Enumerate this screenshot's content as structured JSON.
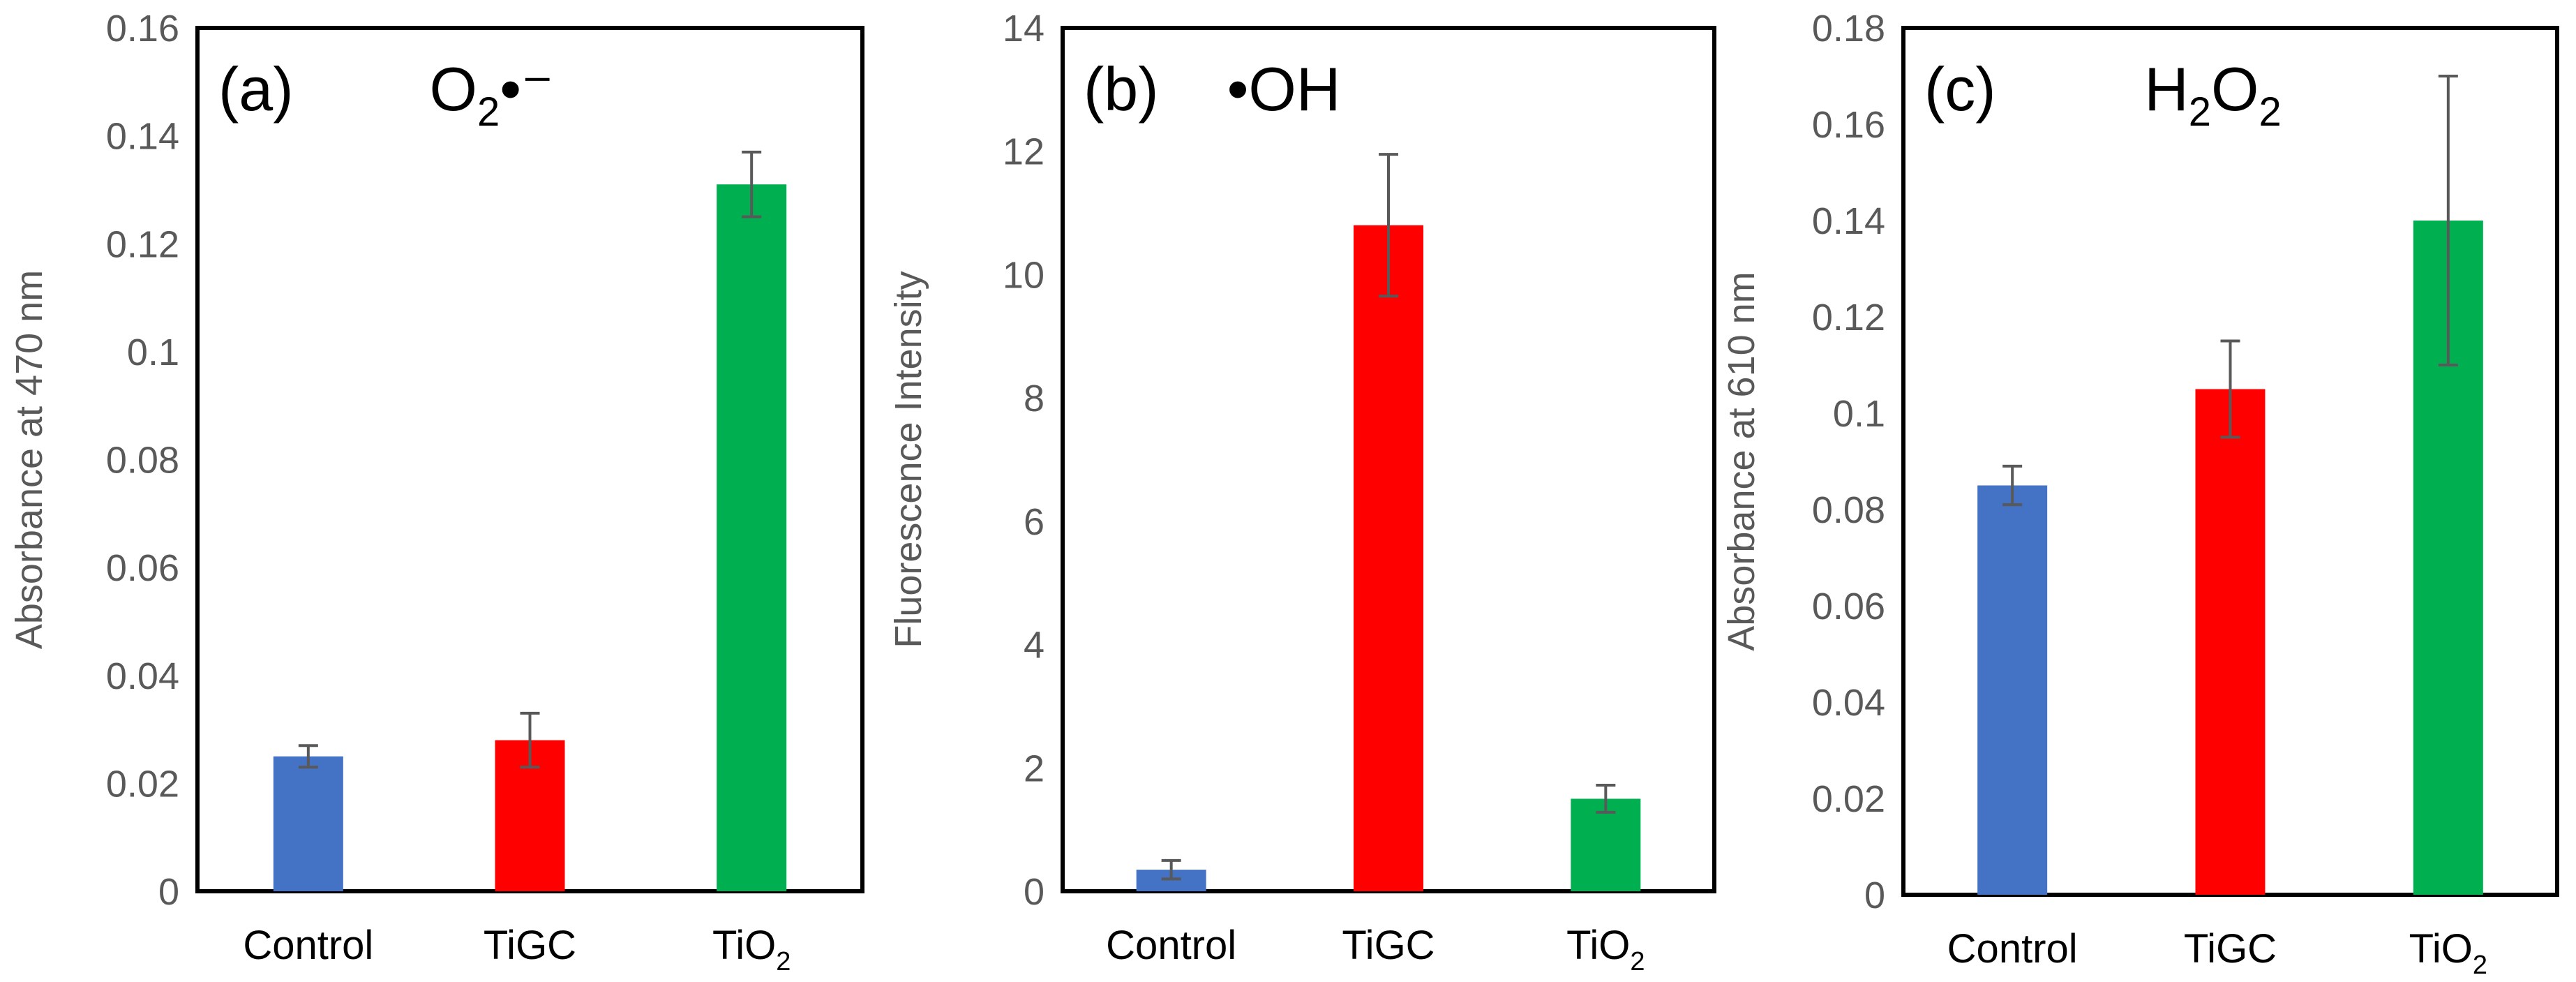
{
  "chart_data": [
    {
      "type": "bar",
      "panel_label": "(a)",
      "species": {
        "base": "O",
        "sub": "2",
        "suffix": "•⁻"
      },
      "ylabel": "Absorbance at 470 nm",
      "ylim": [
        0,
        0.16
      ],
      "yticks": [
        0,
        0.02,
        0.04,
        0.06,
        0.08,
        0.1,
        0.12,
        0.14,
        0.16
      ],
      "ytick_labels": [
        "0",
        "0.02",
        "0.04",
        "0.06",
        "0.08",
        "0.1",
        "0.12",
        "0.14",
        "0.16"
      ],
      "categories": [
        {
          "base": "Control",
          "sub": ""
        },
        {
          "base": "TiGC",
          "sub": ""
        },
        {
          "base": "TiO",
          "sub": "2"
        }
      ],
      "values": [
        0.025,
        0.028,
        0.131
      ],
      "errors": [
        0.002,
        0.005,
        0.006
      ],
      "colors": [
        "#4472C4",
        "#FF0000",
        "#00B050"
      ]
    },
    {
      "type": "bar",
      "panel_label": "(b)",
      "species": {
        "base": "•OH",
        "sub": "",
        "suffix": ""
      },
      "ylabel": "Fluorescence Intensity",
      "ylim": [
        0,
        14
      ],
      "yticks": [
        0,
        2,
        4,
        6,
        8,
        10,
        12,
        14
      ],
      "ytick_labels": [
        "0",
        "2",
        "4",
        "6",
        "8",
        "10",
        "12",
        "14"
      ],
      "categories": [
        {
          "base": "Control",
          "sub": ""
        },
        {
          "base": "TiGC",
          "sub": ""
        },
        {
          "base": "TiO",
          "sub": "2"
        }
      ],
      "values": [
        0.35,
        10.8,
        1.5
      ],
      "errors": [
        0.15,
        1.15,
        0.22
      ],
      "colors": [
        "#4472C4",
        "#FF0000",
        "#00B050"
      ]
    },
    {
      "type": "bar",
      "panel_label": "(c)",
      "species": {
        "base": "H",
        "sub": "2",
        "mid": "O",
        "sub2": "2"
      },
      "ylabel": "Absorbance at 610 nm",
      "ylim": [
        0,
        0.18
      ],
      "yticks": [
        0,
        0.02,
        0.04,
        0.06,
        0.08,
        0.1,
        0.12,
        0.14,
        0.16,
        0.18
      ],
      "ytick_labels": [
        "0",
        "0.02",
        "0.04",
        "0.06",
        "0.08",
        "0.1",
        "0.12",
        "0.14",
        "0.16",
        "0.18"
      ],
      "categories": [
        {
          "base": "Control",
          "sub": ""
        },
        {
          "base": "TiGC",
          "sub": ""
        },
        {
          "base": "TiO",
          "sub": "2"
        }
      ],
      "values": [
        0.085,
        0.105,
        0.14
      ],
      "errors": [
        0.004,
        0.01,
        0.03
      ],
      "colors": [
        "#4472C4",
        "#FF0000",
        "#00B050"
      ]
    }
  ]
}
